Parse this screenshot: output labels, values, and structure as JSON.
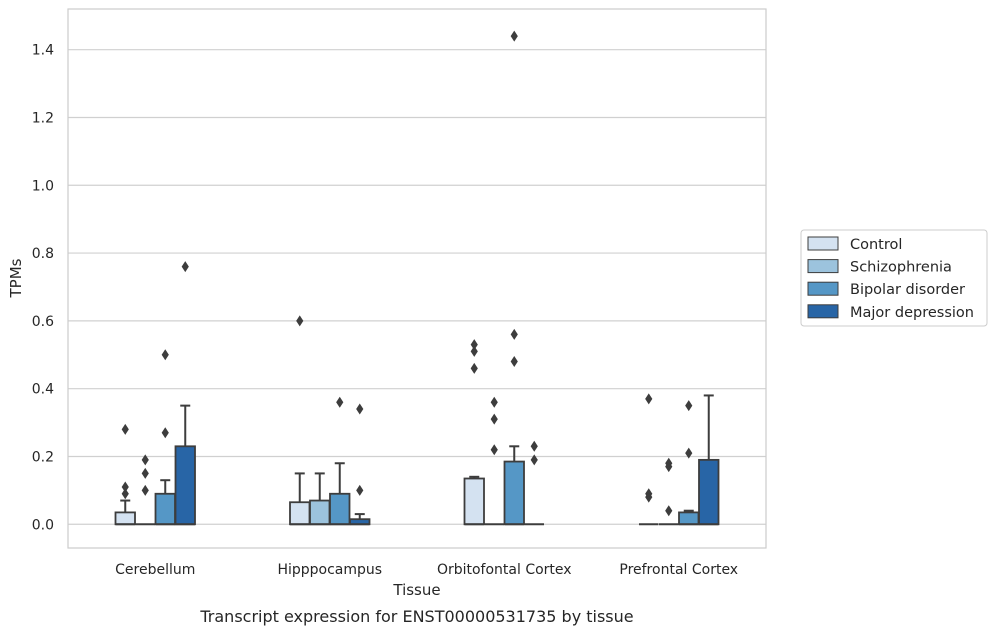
{
  "chart_data": {
    "type": "box",
    "title": "",
    "caption": "Transcript expression for ENST00000531735 by tissue",
    "xlabel": "Tissue",
    "ylabel": "TPMs",
    "ylim": [
      -0.07,
      1.52
    ],
    "yticks": [
      "0.0",
      "0.2",
      "0.4",
      "0.6",
      "0.8",
      "1.0",
      "1.2",
      "1.4"
    ],
    "grid": "horizontal",
    "legend_position": "right",
    "categories": [
      "Cerebellum",
      "Hipppocampus",
      "Orbitofontal Cortex",
      "Prefrontal Cortex"
    ],
    "series": [
      {
        "name": "Control",
        "color": "#d4e2f1",
        "boxes": [
          {
            "q1": 0.0,
            "median": 0.0,
            "q3": 0.035,
            "whisker_low": 0.0,
            "whisker_high": 0.07,
            "outliers": [
              0.09,
              0.11,
              0.28
            ]
          },
          {
            "q1": 0.0,
            "median": 0.0,
            "q3": 0.065,
            "whisker_low": 0.0,
            "whisker_high": 0.15,
            "outliers": [
              0.6
            ]
          },
          {
            "q1": 0.0,
            "median": 0.0,
            "q3": 0.135,
            "whisker_low": 0.0,
            "whisker_high": 0.14,
            "outliers": [
              0.46,
              0.51,
              0.53
            ]
          },
          {
            "q1": 0.0,
            "median": 0.0,
            "q3": 0.0,
            "whisker_low": 0.0,
            "whisker_high": 0.0,
            "outliers": [
              0.08,
              0.09,
              0.37
            ]
          }
        ]
      },
      {
        "name": "Schizophrenia",
        "color": "#9cc3dd",
        "boxes": [
          {
            "q1": 0.0,
            "median": 0.0,
            "q3": 0.0,
            "whisker_low": 0.0,
            "whisker_high": 0.0,
            "outliers": [
              0.1,
              0.15,
              0.19
            ]
          },
          {
            "q1": 0.0,
            "median": 0.0,
            "q3": 0.07,
            "whisker_low": 0.0,
            "whisker_high": 0.15,
            "outliers": []
          },
          {
            "q1": 0.0,
            "median": 0.0,
            "q3": 0.0,
            "whisker_low": 0.0,
            "whisker_high": 0.0,
            "outliers": [
              0.22,
              0.31,
              0.36
            ]
          },
          {
            "q1": 0.0,
            "median": 0.0,
            "q3": 0.0,
            "whisker_low": 0.0,
            "whisker_high": 0.0,
            "outliers": [
              0.04,
              0.17,
              0.18
            ]
          }
        ]
      },
      {
        "name": "Bipolar disorder",
        "color": "#5597c6",
        "boxes": [
          {
            "q1": 0.0,
            "median": 0.0,
            "q3": 0.09,
            "whisker_low": 0.0,
            "whisker_high": 0.13,
            "outliers": [
              0.27,
              0.5
            ]
          },
          {
            "q1": 0.0,
            "median": 0.0,
            "q3": 0.09,
            "whisker_low": 0.0,
            "whisker_high": 0.18,
            "outliers": [
              0.36
            ]
          },
          {
            "q1": 0.0,
            "median": 0.0,
            "q3": 0.185,
            "whisker_low": 0.0,
            "whisker_high": 0.23,
            "outliers": [
              0.48,
              0.56,
              1.44
            ]
          },
          {
            "q1": 0.0,
            "median": 0.0,
            "q3": 0.035,
            "whisker_low": 0.0,
            "whisker_high": 0.04,
            "outliers": [
              0.21,
              0.35
            ]
          }
        ]
      },
      {
        "name": "Major depression",
        "color": "#2865a6",
        "boxes": [
          {
            "q1": 0.0,
            "median": 0.0,
            "q3": 0.23,
            "whisker_low": 0.0,
            "whisker_high": 0.35,
            "outliers": [
              0.76
            ]
          },
          {
            "q1": 0.0,
            "median": 0.0,
            "q3": 0.015,
            "whisker_low": 0.0,
            "whisker_high": 0.03,
            "outliers": [
              0.1,
              0.34
            ]
          },
          {
            "q1": 0.0,
            "median": 0.0,
            "q3": 0.0,
            "whisker_low": 0.0,
            "whisker_high": 0.0,
            "outliers": [
              0.19,
              0.23
            ]
          },
          {
            "q1": 0.0,
            "median": 0.0,
            "q3": 0.19,
            "whisker_low": 0.0,
            "whisker_high": 0.38,
            "outliers": []
          }
        ]
      }
    ],
    "colors": {
      "edge": "#3d3d3d",
      "grid": "#d0d0d0",
      "frame": "#cccccc",
      "outlier": "#3d3d3d"
    }
  }
}
